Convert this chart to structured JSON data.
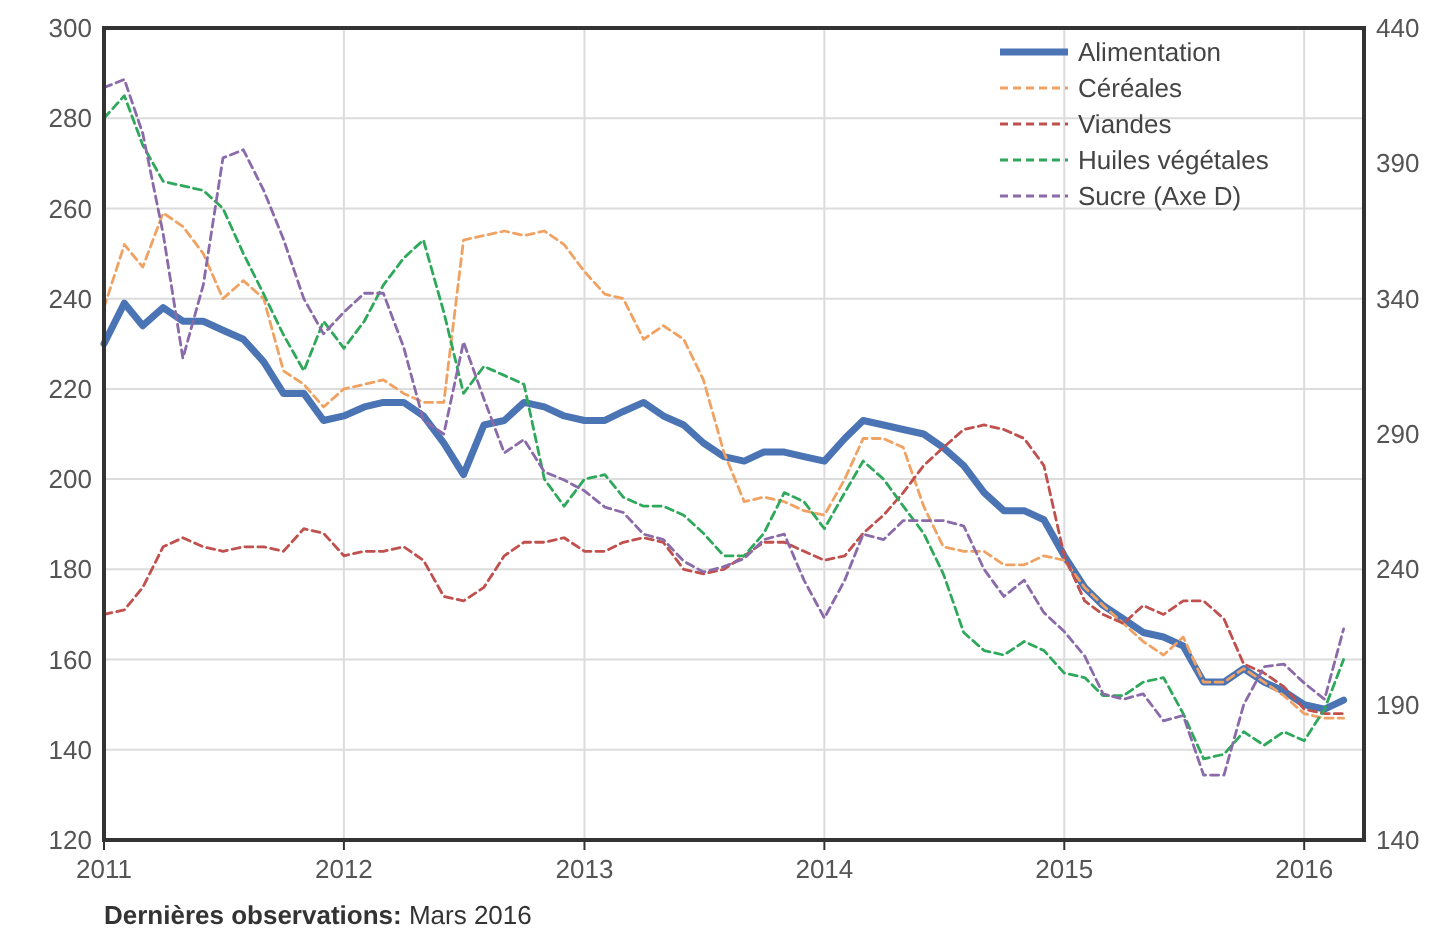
{
  "chart_data": {
    "type": "line",
    "x": [
      "2011-01",
      "2011-02",
      "2011-03",
      "2011-04",
      "2011-05",
      "2011-06",
      "2011-07",
      "2011-08",
      "2011-09",
      "2011-10",
      "2011-11",
      "2011-12",
      "2012-01",
      "2012-02",
      "2012-03",
      "2012-04",
      "2012-05",
      "2012-06",
      "2012-07",
      "2012-08",
      "2012-09",
      "2012-10",
      "2012-11",
      "2012-12",
      "2013-01",
      "2013-02",
      "2013-03",
      "2013-04",
      "2013-05",
      "2013-06",
      "2013-07",
      "2013-08",
      "2013-09",
      "2013-10",
      "2013-11",
      "2013-12",
      "2014-01",
      "2014-02",
      "2014-03",
      "2014-04",
      "2014-05",
      "2014-06",
      "2014-07",
      "2014-08",
      "2014-09",
      "2014-10",
      "2014-11",
      "2014-12",
      "2015-01",
      "2015-02",
      "2015-03",
      "2015-04",
      "2015-05",
      "2015-06",
      "2015-07",
      "2015-08",
      "2015-09",
      "2015-10",
      "2015-11",
      "2015-12",
      "2016-01",
      "2016-02",
      "2016-03"
    ],
    "series": [
      {
        "name": "Alimentation",
        "color": "#4a74b4",
        "line_style": "solid",
        "values": [
          230,
          239,
          234,
          238,
          235,
          235,
          233,
          231,
          226,
          219,
          219,
          213,
          214,
          216,
          217,
          217,
          214,
          208,
          201,
          212,
          213,
          217,
          216,
          214,
          213,
          213,
          215,
          217,
          214,
          212,
          208,
          205,
          204,
          206,
          206,
          205,
          204,
          209,
          213,
          212,
          211,
          210,
          207,
          203,
          197,
          193,
          193,
          191,
          183,
          176,
          172,
          169,
          166,
          165,
          163,
          155,
          155,
          158,
          155,
          153,
          150,
          149,
          151
        ]
      },
      {
        "name": "Céréales",
        "color": "#f0a263",
        "line_style": "dashed",
        "values": [
          238,
          252,
          247,
          259,
          256,
          250,
          240,
          244,
          240,
          224,
          221,
          216,
          220,
          221,
          222,
          219,
          217,
          217,
          253,
          254,
          255,
          254,
          255,
          252,
          246,
          241,
          240,
          231,
          234,
          231,
          222,
          206,
          195,
          196,
          195,
          193,
          192,
          200,
          209,
          209,
          207,
          194,
          185,
          184,
          184,
          181,
          181,
          183,
          182,
          176,
          172,
          168,
          164,
          161,
          165,
          155,
          155,
          158,
          155,
          152,
          148,
          147,
          147
        ]
      },
      {
        "name": "Viandes",
        "color": "#c0504d",
        "line_style": "dashed",
        "values": [
          170,
          171,
          176,
          185,
          187,
          185,
          184,
          185,
          185,
          184,
          189,
          188,
          183,
          184,
          184,
          185,
          182,
          174,
          173,
          176,
          183,
          186,
          186,
          187,
          184,
          184,
          186,
          187,
          186,
          180,
          179,
          180,
          183,
          186,
          186,
          184,
          182,
          183,
          188,
          192,
          197,
          203,
          207,
          211,
          212,
          211,
          209,
          203,
          183,
          173,
          170,
          168,
          172,
          170,
          173,
          173,
          169,
          159,
          157,
          154,
          149,
          148,
          148
        ]
      },
      {
        "name": "Huiles végétales",
        "color": "#2ea85a",
        "line_style": "dashed",
        "values": [
          280,
          285,
          274,
          266,
          265,
          264,
          260,
          250,
          241,
          232,
          224,
          235,
          229,
          235,
          243,
          249,
          253,
          237,
          219,
          225,
          223,
          221,
          200,
          194,
          200,
          201,
          196,
          194,
          194,
          192,
          188,
          183,
          183,
          188,
          197,
          195,
          189,
          197,
          204,
          200,
          194,
          188,
          179,
          166,
          162,
          161,
          164,
          162,
          157,
          156,
          152,
          152,
          155,
          156,
          148,
          138,
          139,
          144,
          141,
          144,
          142,
          149,
          160
        ]
      },
      {
        "name": "Sucre (Axe D)",
        "color": "#8a6aa8",
        "line_style": "dashed",
        "axis": "y2",
        "values": [
          418,
          421,
          401,
          364,
          318,
          345,
          392,
          395,
          380,
          362,
          340,
          327,
          335,
          342,
          342,
          322,
          295,
          290,
          324,
          303,
          283,
          288,
          276,
          273,
          269,
          263,
          261,
          253,
          251,
          243,
          239,
          241,
          244,
          251,
          253,
          236,
          222,
          236,
          253,
          251,
          258,
          258,
          258,
          256,
          240,
          230,
          236,
          224,
          217,
          208,
          194,
          192,
          194,
          184,
          186,
          164,
          164,
          190,
          204,
          205,
          198,
          192,
          218
        ]
      }
    ],
    "xlim": [
      "2011",
      "2016-04"
    ],
    "xticks": [
      "2011",
      "2012",
      "2013",
      "2014",
      "2015",
      "2016"
    ],
    "ylim": [
      120,
      300
    ],
    "yticks": [
      120,
      140,
      160,
      180,
      200,
      220,
      240,
      260,
      280,
      300
    ],
    "y2lim": [
      140,
      440
    ],
    "y2ticks": [
      140,
      190,
      240,
      290,
      340,
      390,
      440
    ],
    "grid": true,
    "legend": "top right",
    "marker": "none",
    "annotations": [
      "Dernières observations: Mars 2016"
    ]
  }
}
